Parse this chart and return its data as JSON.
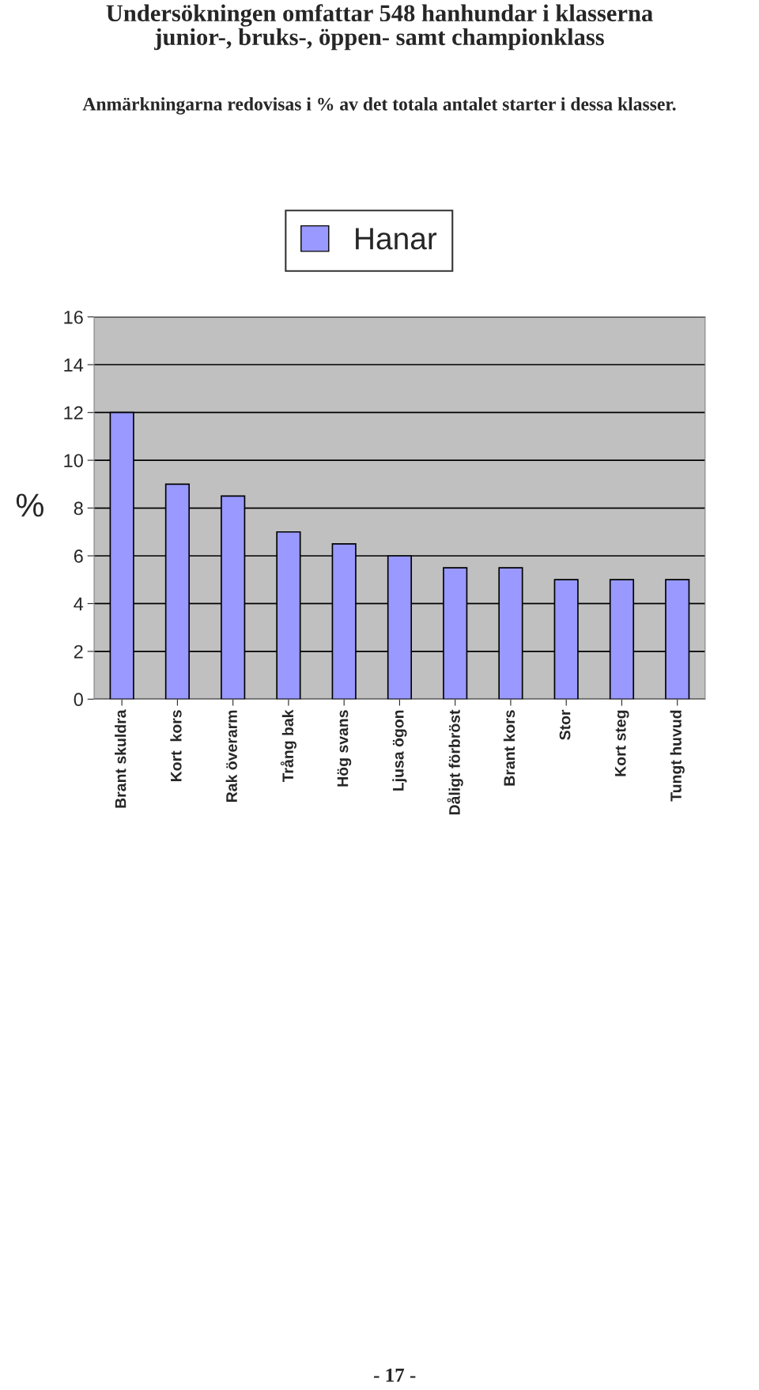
{
  "chart_data": {
    "type": "bar",
    "title": "Undersökningen omfattar 548 hanhundar i klasserna\njunior-, bruks-, öppen- samt championklass",
    "subtitle": "Anmärkningarna redovisas i % av det totala antalet starter i dessa klasser.",
    "ylabel": "%",
    "categories": [
      "Brant skuldra",
      "Kort  kors",
      "Rak överarm",
      "Trång bak",
      "Hög svans",
      "Ljusa ögon",
      "Dåligt förbröst",
      "Brant kors",
      "Stor",
      "Kort steg",
      "Tungt huvud"
    ],
    "series": [
      {
        "name": "Hanar",
        "color": "#9999ff",
        "values": [
          12,
          9,
          8.5,
          7,
          6.5,
          6,
          5.5,
          5.5,
          5,
          5,
          5
        ]
      }
    ],
    "ylim": [
      0,
      16
    ],
    "yticks": [
      0,
      2,
      4,
      6,
      8,
      10,
      12,
      14,
      16
    ],
    "grid": "y",
    "legend": "top",
    "annotations": [
      "- 17 -"
    ]
  }
}
